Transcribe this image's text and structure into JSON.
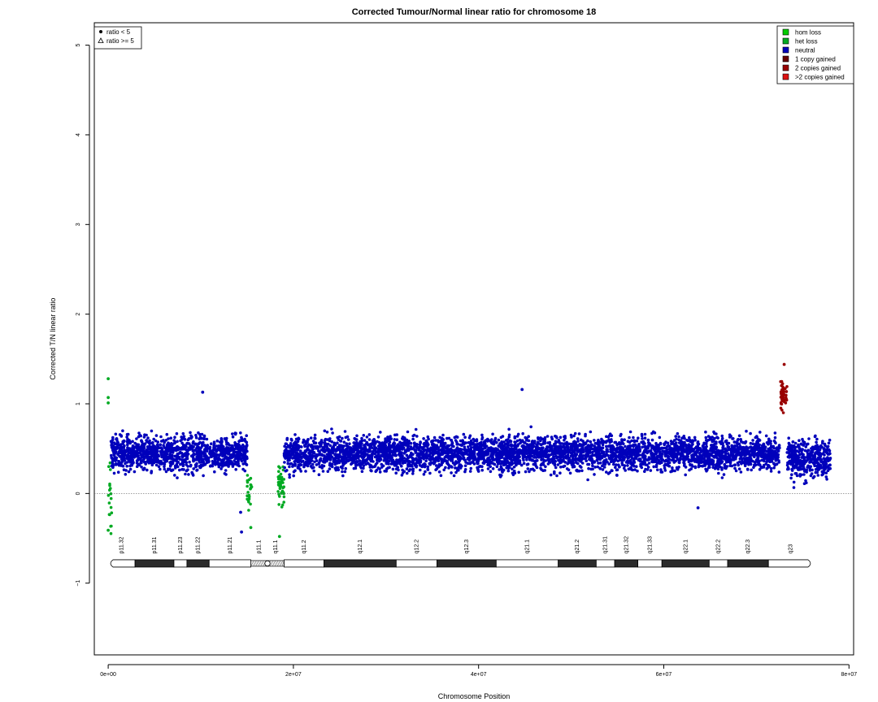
{
  "chart_data": {
    "type": "scatter",
    "title": "Corrected Tumour/Normal linear ratio for chromosome  18",
    "xlabel": "Chromosome Position",
    "ylabel": "Corrected T/N linear ratio",
    "xlim": [
      -1500000,
      80500000
    ],
    "ylim": [
      -1.8,
      5.25
    ],
    "x_ticks": [
      0,
      20000000,
      40000000,
      60000000,
      80000000
    ],
    "x_tick_labels": [
      "0e+00",
      "2e+07",
      "4e+07",
      "6e+07",
      "8e+07"
    ],
    "y_ticks": [
      -1,
      0,
      1,
      2,
      3,
      4,
      5
    ],
    "y_tick_labels": [
      "−1",
      "0",
      "1",
      "2",
      "3",
      "4",
      "5"
    ],
    "reference_line": 0,
    "shape_legend": {
      "position": "top-left",
      "items": [
        {
          "symbol": "dot",
          "label": "ratio < 5"
        },
        {
          "symbol": "triangle",
          "label": "ratio >= 5"
        }
      ]
    },
    "legend": {
      "position": "top-right",
      "items": [
        {
          "label": "hom loss",
          "color": "#00cc00"
        },
        {
          "label": "het loss",
          "color": "#00aa22"
        },
        {
          "label": "neutral",
          "color": "#0000bb"
        },
        {
          "label": "1 copy gained",
          "color": "#660000"
        },
        {
          "label": "2 copies gained",
          "color": "#990000"
        },
        {
          "label": ">2 copies gained",
          "color": "#dd1111"
        }
      ]
    },
    "segments": [
      {
        "state": "het loss",
        "x_start": 0,
        "x_end": 400000,
        "mean": -0.05,
        "sd": 0.4,
        "count": 18
      },
      {
        "state": "neutral",
        "x_start": 300000,
        "x_end": 15000000,
        "mean": 0.45,
        "sd": 0.15,
        "count": 1200
      },
      {
        "state": "het loss",
        "x_start": 15000000,
        "x_end": 15500000,
        "mean": 0.05,
        "sd": 0.2,
        "count": 22
      },
      {
        "state": "het loss",
        "x_start": 18300000,
        "x_end": 19000000,
        "mean": 0.1,
        "sd": 0.2,
        "count": 45
      },
      {
        "state": "neutral",
        "x_start": 19000000,
        "x_end": 72500000,
        "mean": 0.45,
        "sd": 0.15,
        "count": 4200
      },
      {
        "state": "2 copies gained",
        "x_start": 72600000,
        "x_end": 73300000,
        "mean": 1.1,
        "sd": 0.17,
        "count": 45
      },
      {
        "state": "neutral",
        "x_start": 73300000,
        "x_end": 78000000,
        "mean": 0.4,
        "sd": 0.17,
        "count": 380
      }
    ],
    "notable_points": [
      {
        "x": 0,
        "y": 1.28,
        "state": "het loss"
      },
      {
        "x": 0,
        "y": 1.07,
        "state": "het loss"
      },
      {
        "x": 0,
        "y": 1.01,
        "state": "het loss"
      },
      {
        "x": 0,
        "y": -0.41,
        "state": "het loss"
      },
      {
        "x": 10200000,
        "y": 1.13,
        "state": "neutral"
      },
      {
        "x": 44700000,
        "y": 1.16,
        "state": "neutral"
      },
      {
        "x": 14300000,
        "y": -0.21,
        "state": "neutral"
      },
      {
        "x": 14400000,
        "y": -0.43,
        "state": "neutral"
      },
      {
        "x": 63700000,
        "y": -0.16,
        "state": "neutral"
      },
      {
        "x": 18500000,
        "y": -0.48,
        "state": "het loss"
      },
      {
        "x": 15400000,
        "y": -0.38,
        "state": "het loss"
      },
      {
        "x": 73000000,
        "y": 1.44,
        "state": "2 copies gained"
      }
    ],
    "ideogram": {
      "y": -0.78,
      "centromere": 17200000,
      "bands": [
        {
          "name": "p11.32",
          "start": 0,
          "end": 2900000,
          "stain": "white"
        },
        {
          "name": "p11.31",
          "start": 2900000,
          "end": 7100000,
          "stain": "dark"
        },
        {
          "name": "p11.23",
          "start": 7100000,
          "end": 8500000,
          "stain": "white"
        },
        {
          "name": "p11.22",
          "start": 8500000,
          "end": 10900000,
          "stain": "dark"
        },
        {
          "name": "p11.21",
          "start": 10900000,
          "end": 15400000,
          "stain": "white"
        },
        {
          "name": "p11.1",
          "start": 15400000,
          "end": 17200000,
          "stain": "acen"
        },
        {
          "name": "q11.1",
          "start": 17200000,
          "end": 19000000,
          "stain": "stalk"
        },
        {
          "name": "q11.2",
          "start": 19000000,
          "end": 23300000,
          "stain": "white"
        },
        {
          "name": "q12.1",
          "start": 23300000,
          "end": 31100000,
          "stain": "dark"
        },
        {
          "name": "q12.2",
          "start": 31100000,
          "end": 35500000,
          "stain": "white"
        },
        {
          "name": "q12.3",
          "start": 35500000,
          "end": 41900000,
          "stain": "dark"
        },
        {
          "name": "q21.1",
          "start": 41900000,
          "end": 48600000,
          "stain": "white"
        },
        {
          "name": "q21.2",
          "start": 48600000,
          "end": 52700000,
          "stain": "dark"
        },
        {
          "name": "q21.31",
          "start": 52700000,
          "end": 54700000,
          "stain": "white"
        },
        {
          "name": "q21.32",
          "start": 54700000,
          "end": 57200000,
          "stain": "dark"
        },
        {
          "name": "q21.33",
          "start": 57200000,
          "end": 59800000,
          "stain": "white"
        },
        {
          "name": "q22.1",
          "start": 59800000,
          "end": 64900000,
          "stain": "dark"
        },
        {
          "name": "q22.2",
          "start": 64900000,
          "end": 66900000,
          "stain": "white"
        },
        {
          "name": "q22.3",
          "start": 66900000,
          "end": 71300000,
          "stain": "dark"
        },
        {
          "name": "q23",
          "start": 71300000,
          "end": 76100000,
          "stain": "white"
        }
      ]
    }
  }
}
